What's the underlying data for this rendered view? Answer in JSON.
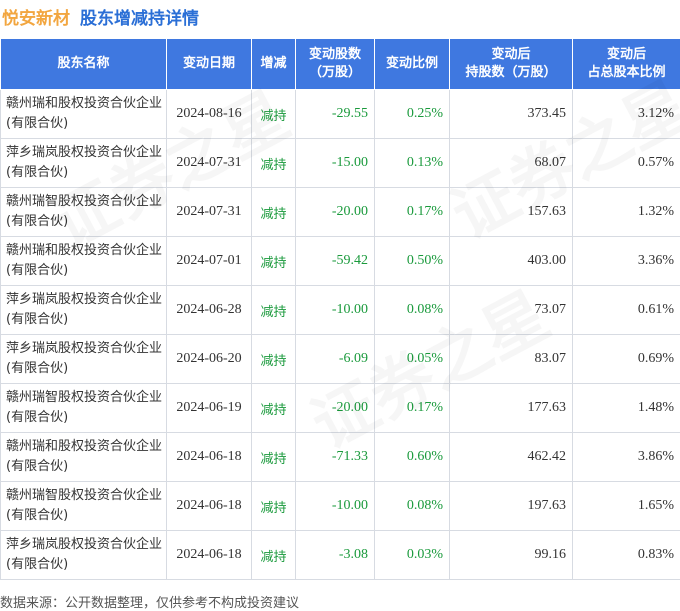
{
  "header": {
    "company": "悦安新材",
    "title": "股东增减持详情"
  },
  "table": {
    "columns": [
      "股东名称",
      "变动日期",
      "增减",
      "变动股数\n（万股）",
      "变动比例",
      "变动后\n持股数（万股）",
      "变动后\n占总股本比例"
    ],
    "rows": [
      {
        "name": "赣州瑞和股权投资合伙企业(有限合伙)",
        "date": "2024-08-16",
        "direction": "减持",
        "shares": "-29.55",
        "ratio": "0.25%",
        "after_shares": "373.45",
        "after_ratio": "3.12%"
      },
      {
        "name": "萍乡瑞岚股权投资合伙企业(有限合伙)",
        "date": "2024-07-31",
        "direction": "减持",
        "shares": "-15.00",
        "ratio": "0.13%",
        "after_shares": "68.07",
        "after_ratio": "0.57%"
      },
      {
        "name": "赣州瑞智股权投资合伙企业(有限合伙)",
        "date": "2024-07-31",
        "direction": "减持",
        "shares": "-20.00",
        "ratio": "0.17%",
        "after_shares": "157.63",
        "after_ratio": "1.32%"
      },
      {
        "name": "赣州瑞和股权投资合伙企业(有限合伙)",
        "date": "2024-07-01",
        "direction": "减持",
        "shares": "-59.42",
        "ratio": "0.50%",
        "after_shares": "403.00",
        "after_ratio": "3.36%"
      },
      {
        "name": "萍乡瑞岚股权投资合伙企业(有限合伙)",
        "date": "2024-06-28",
        "direction": "减持",
        "shares": "-10.00",
        "ratio": "0.08%",
        "after_shares": "73.07",
        "after_ratio": "0.61%"
      },
      {
        "name": "萍乡瑞岚股权投资合伙企业(有限合伙)",
        "date": "2024-06-20",
        "direction": "减持",
        "shares": "-6.09",
        "ratio": "0.05%",
        "after_shares": "83.07",
        "after_ratio": "0.69%"
      },
      {
        "name": "赣州瑞智股权投资合伙企业(有限合伙)",
        "date": "2024-06-19",
        "direction": "减持",
        "shares": "-20.00",
        "ratio": "0.17%",
        "after_shares": "177.63",
        "after_ratio": "1.48%"
      },
      {
        "name": "赣州瑞和股权投资合伙企业(有限合伙)",
        "date": "2024-06-18",
        "direction": "减持",
        "shares": "-71.33",
        "ratio": "0.60%",
        "after_shares": "462.42",
        "after_ratio": "3.86%"
      },
      {
        "name": "赣州瑞智股权投资合伙企业(有限合伙)",
        "date": "2024-06-18",
        "direction": "减持",
        "shares": "-10.00",
        "ratio": "0.08%",
        "after_shares": "197.63",
        "after_ratio": "1.65%"
      },
      {
        "name": "萍乡瑞岚股权投资合伙企业(有限合伙)",
        "date": "2024-06-18",
        "direction": "减持",
        "shares": "-3.08",
        "ratio": "0.03%",
        "after_shares": "99.16",
        "after_ratio": "0.83%"
      }
    ]
  },
  "footer": {
    "source": "数据来源：公开数据整理，仅供参考不构成投资建议"
  },
  "watermark": {
    "text": "证券之星"
  },
  "colors": {
    "header_bg": "#3f78e0",
    "company_orange": "#f2a640",
    "title_blue": "#2b6fd6",
    "green": "#1a9a3c"
  }
}
